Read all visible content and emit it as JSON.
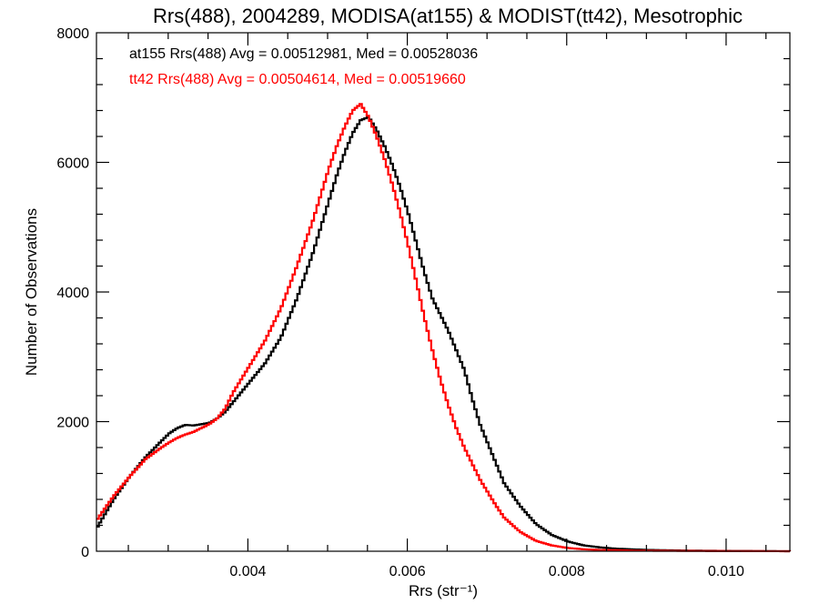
{
  "chart_data": {
    "type": "line",
    "style": "histogram-step",
    "title": "Rrs(488), 2004289, MODISA(at155) & MODIST(tt42), Mesotrophic",
    "xlabel": "Rrs (str⁻¹)",
    "ylabel": "Number of Observations",
    "xlim": [
      0.0021,
      0.0108
    ],
    "ylim": [
      0,
      8000
    ],
    "x_ticks": [
      0.004,
      0.006,
      0.008,
      0.01
    ],
    "x_tick_labels": [
      "0.004",
      "0.006",
      "0.008",
      "0.010"
    ],
    "y_ticks": [
      0,
      2000,
      4000,
      6000,
      8000
    ],
    "y_tick_labels": [
      "0",
      "2000",
      "4000",
      "6000",
      "8000"
    ],
    "grid": false,
    "legend_placement": "top-left",
    "annotations": [
      {
        "text": "at155 Rrs(488) Avg = 0.00512981, Med = 0.00528036",
        "color": "#000000"
      },
      {
        "text": "tt42 Rrs(488) Avg = 0.00504614, Med = 0.00519660",
        "color": "#ff0000"
      }
    ],
    "series": [
      {
        "color": "#000000",
        "x": [
          0.0021,
          0.0023,
          0.0025,
          0.0027,
          0.0029,
          0.003,
          0.0031,
          0.0032,
          0.0033,
          0.0034,
          0.0035,
          0.0036,
          0.0037,
          0.0038,
          0.0039,
          0.004,
          0.0042,
          0.0044,
          0.0046,
          0.0048,
          0.005,
          0.0051,
          0.0052,
          0.0053,
          0.0054,
          0.0055,
          0.0056,
          0.0057,
          0.0058,
          0.0059,
          0.006,
          0.0061,
          0.0062,
          0.0063,
          0.0064,
          0.0065,
          0.0066,
          0.0067,
          0.0068,
          0.0069,
          0.007,
          0.0071,
          0.0072,
          0.0074,
          0.0076,
          0.0078,
          0.008,
          0.0082,
          0.0084,
          0.0086,
          0.0088,
          0.009,
          0.0095,
          0.01,
          0.0108
        ],
        "y": [
          380,
          800,
          1150,
          1450,
          1700,
          1820,
          1900,
          1950,
          1940,
          1960,
          1980,
          2050,
          2150,
          2300,
          2450,
          2600,
          2900,
          3300,
          3900,
          4600,
          5400,
          5800,
          6150,
          6450,
          6650,
          6700,
          6500,
          6250,
          5950,
          5600,
          5200,
          4750,
          4300,
          3900,
          3650,
          3400,
          3100,
          2800,
          2350,
          1950,
          1650,
          1350,
          1050,
          700,
          420,
          250,
          150,
          90,
          60,
          40,
          30,
          20,
          10,
          5,
          0
        ]
      },
      {
        "color": "#ff0000",
        "x": [
          0.0021,
          0.0023,
          0.0025,
          0.0027,
          0.0029,
          0.003,
          0.0031,
          0.0032,
          0.0033,
          0.0034,
          0.0035,
          0.0036,
          0.0037,
          0.0038,
          0.0039,
          0.004,
          0.0042,
          0.0044,
          0.0046,
          0.0048,
          0.005,
          0.0051,
          0.0052,
          0.0053,
          0.0054,
          0.0055,
          0.0056,
          0.0057,
          0.0058,
          0.0059,
          0.006,
          0.0061,
          0.0062,
          0.0063,
          0.0064,
          0.0065,
          0.0066,
          0.0067,
          0.0068,
          0.0069,
          0.007,
          0.0071,
          0.0072,
          0.0074,
          0.0076,
          0.0078,
          0.008,
          0.0082,
          0.0084,
          0.0086,
          0.0088,
          0.009,
          0.0095,
          0.01,
          0.0108
        ],
        "y": [
          500,
          850,
          1150,
          1420,
          1600,
          1680,
          1750,
          1800,
          1840,
          1900,
          1960,
          2050,
          2200,
          2450,
          2650,
          2850,
          3250,
          3750,
          4400,
          5100,
          5900,
          6250,
          6550,
          6800,
          6900,
          6700,
          6400,
          6050,
          5650,
          5200,
          4700,
          4150,
          3600,
          3100,
          2650,
          2250,
          1900,
          1600,
          1350,
          1100,
          900,
          700,
          520,
          300,
          160,
          90,
          50,
          30,
          20,
          15,
          10,
          8,
          5,
          3,
          0
        ]
      }
    ]
  }
}
